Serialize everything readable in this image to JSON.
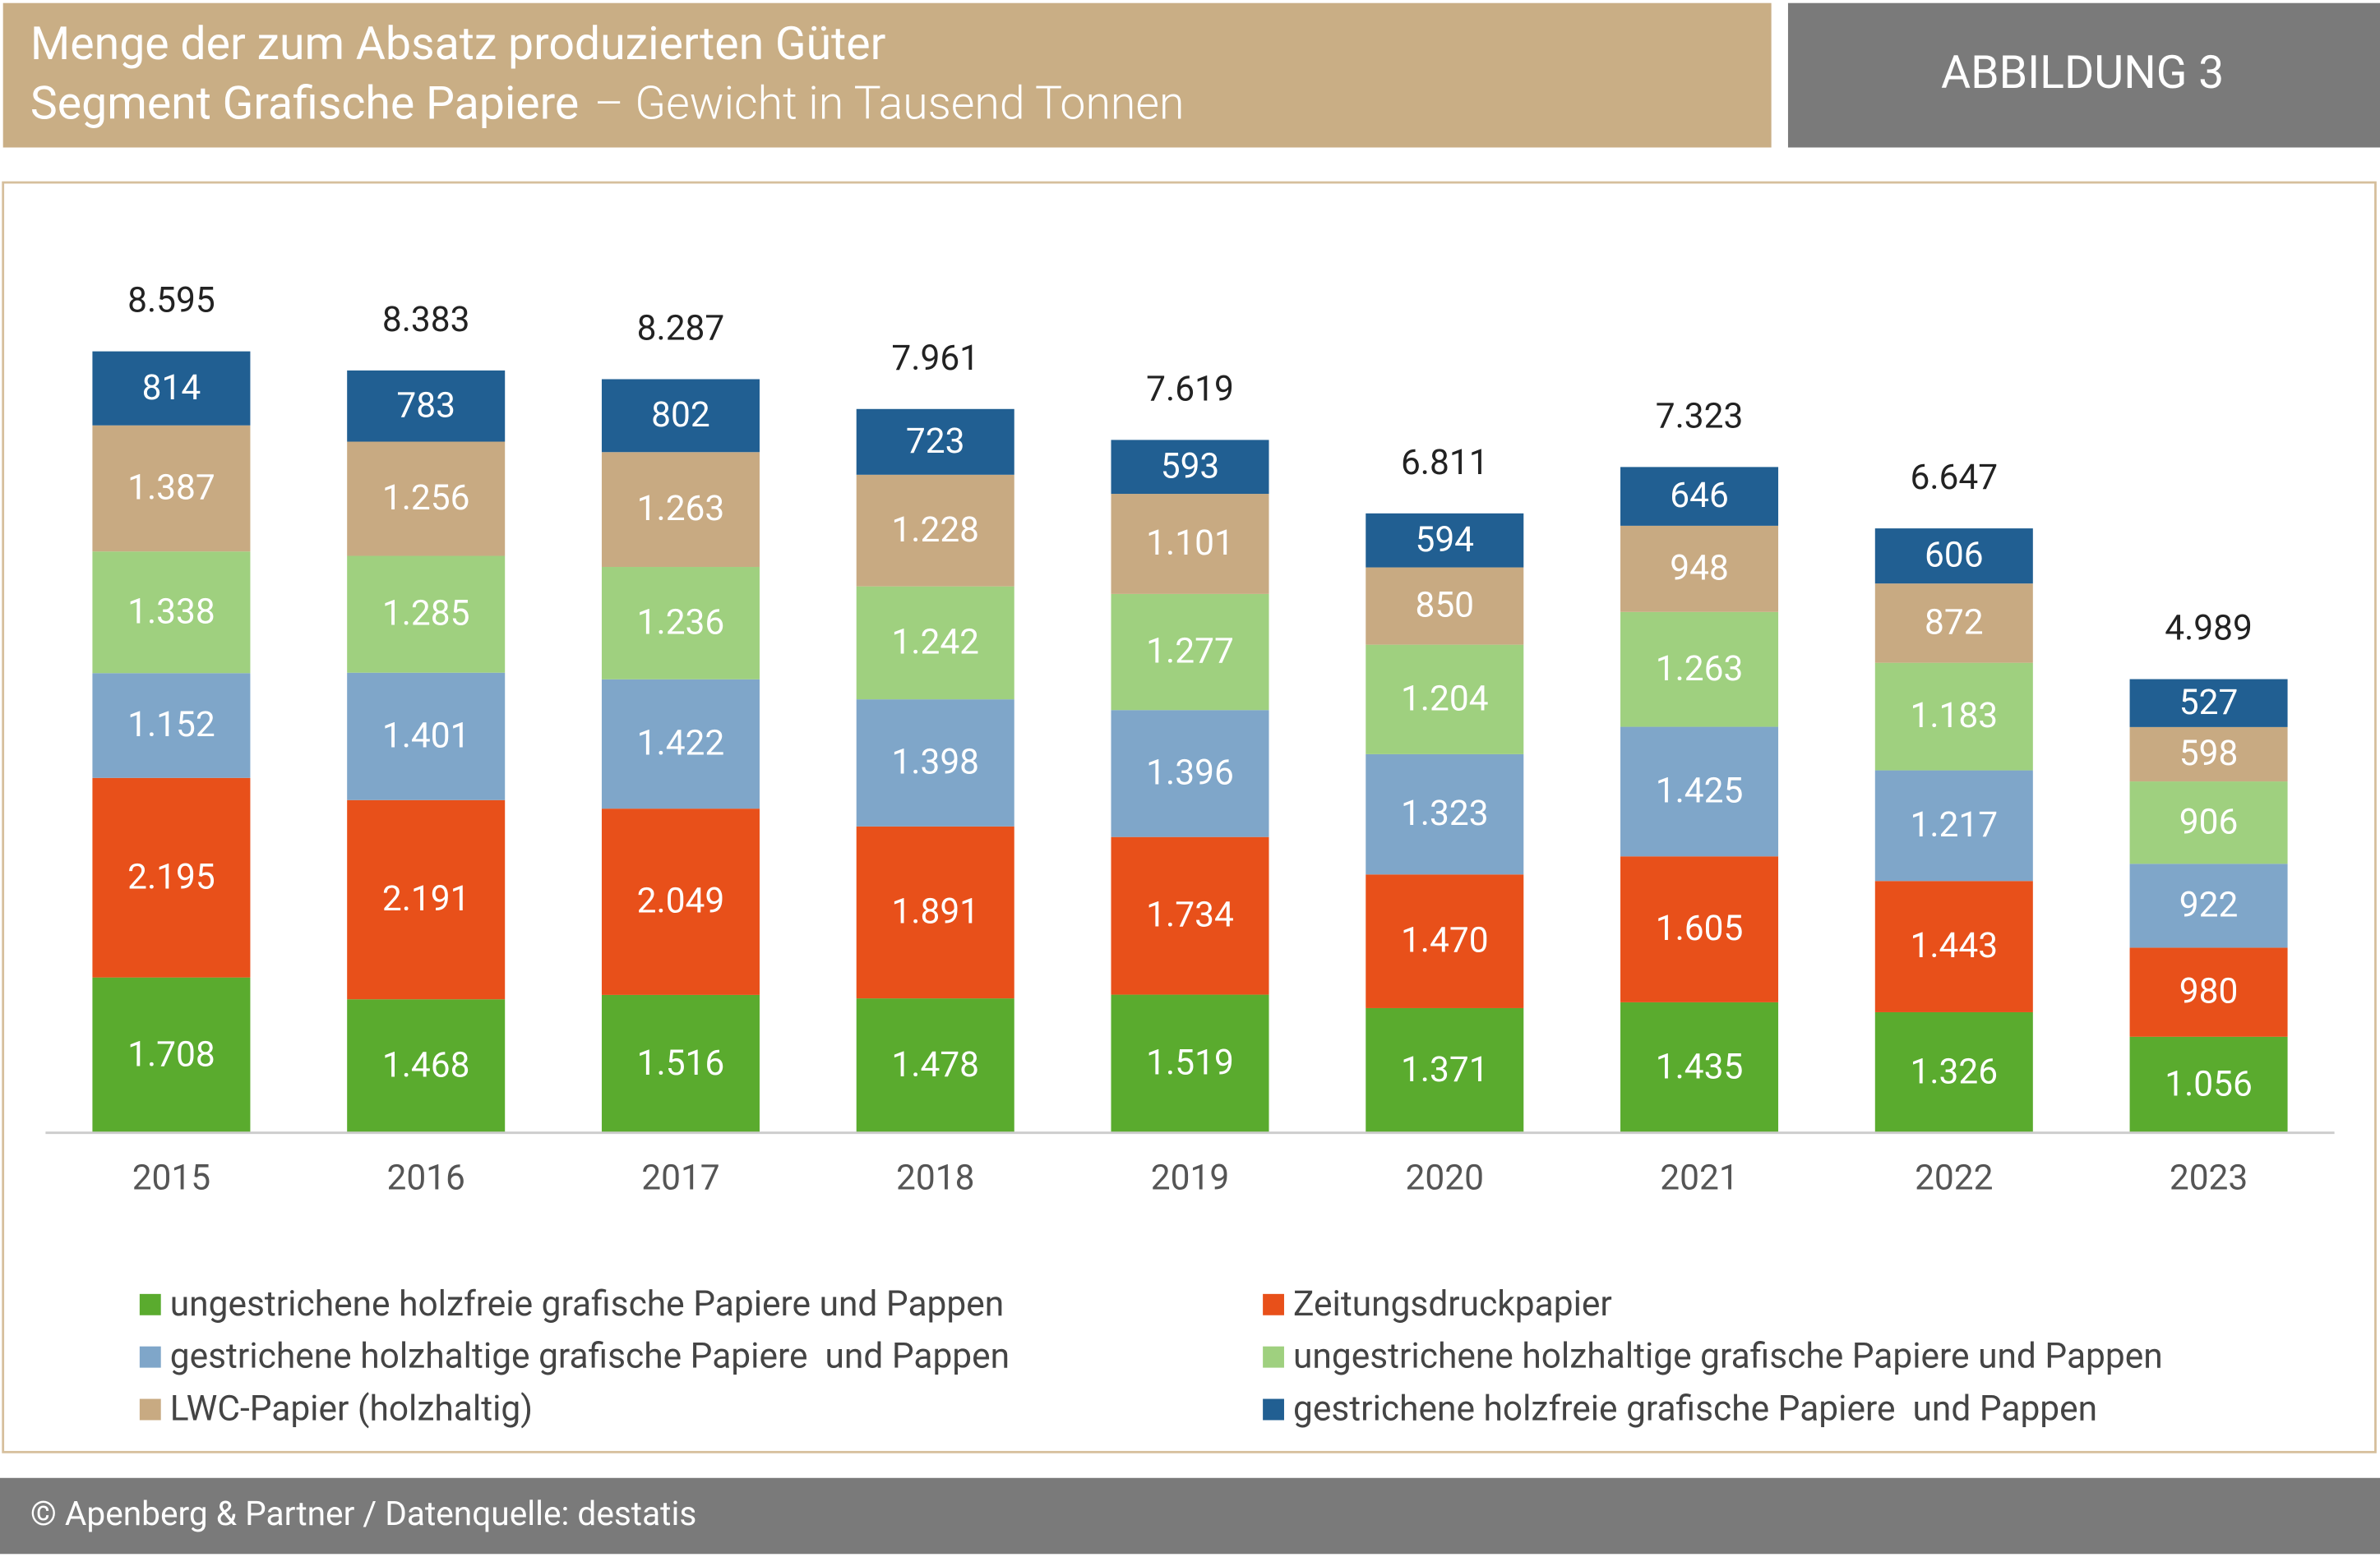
{
  "badge": "ABBILDUNG 3",
  "footer": "© Apenberg & Partner / Datenquelle: destatis",
  "chart_data": {
    "type": "stacked_bar",
    "title": "Menge der zum Absatz produzierten Güter",
    "subtitle": "Segment Grafische Papiere",
    "subtitle_detail": "– Gewicht in Tausend Tonnen",
    "categories": [
      "2015",
      "2016",
      "2017",
      "2018",
      "2019",
      "2020",
      "2021",
      "2022",
      "2023"
    ],
    "ylim": [
      0,
      10000
    ],
    "series": [
      {
        "name": "ungestrichene holzfreie grafische Papiere und Pappen",
        "color": "#5aab2e",
        "values": [
          1708,
          1468,
          1516,
          1478,
          1519,
          1371,
          1435,
          1326,
          1056
        ],
        "value_labels": [
          "1.708",
          "1.468",
          "1.516",
          "1.478",
          "1.519",
          "1.371",
          "1.435",
          "1.326",
          "1.056"
        ]
      },
      {
        "name": "Zeitungsdruckpapier",
        "color": "#e8501a",
        "values": [
          2195,
          2191,
          2049,
          1891,
          1734,
          1470,
          1605,
          1443,
          980
        ],
        "value_labels": [
          "2.195",
          "2.191",
          "2.049",
          "1.891",
          "1.734",
          "1.470",
          "1.605",
          "1.443",
          "980"
        ]
      },
      {
        "name": "gestrichene holzhaltige grafische Papiere  und Pappen",
        "color": "#7fa6c9",
        "values": [
          1152,
          1401,
          1422,
          1398,
          1396,
          1323,
          1425,
          1217,
          922
        ],
        "value_labels": [
          "1.152",
          "1.401",
          "1.422",
          "1.398",
          "1.396",
          "1.323",
          "1.425",
          "1.217",
          "922"
        ]
      },
      {
        "name": "ungestrichene holzhaltige grafische Papiere und Pappen",
        "color": "#9fd07f",
        "values": [
          1338,
          1285,
          1236,
          1242,
          1277,
          1204,
          1263,
          1183,
          906
        ],
        "value_labels": [
          "1.338",
          "1.285",
          "1.236",
          "1.242",
          "1.277",
          "1.204",
          "1.263",
          "1.183",
          "906"
        ]
      },
      {
        "name": "LWC-Papier (holzhaltig)",
        "color": "#c8aa82",
        "values": [
          1387,
          1256,
          1263,
          1228,
          1101,
          850,
          948,
          872,
          598
        ],
        "value_labels": [
          "1.387",
          "1.256",
          "1.263",
          "1.228",
          "1.101",
          "850",
          "948",
          "872",
          "598"
        ]
      },
      {
        "name": "gestrichene holzfreie grafische Papiere  und Pappen",
        "color": "#215f92",
        "values": [
          814,
          783,
          802,
          723,
          593,
          594,
          646,
          606,
          527
        ],
        "value_labels": [
          "814",
          "783",
          "802",
          "723",
          "593",
          "594",
          "646",
          "606",
          "527"
        ]
      }
    ],
    "totals": {
      "values": [
        8595,
        8383,
        8287,
        7961,
        7619,
        6811,
        7323,
        6647,
        4989
      ],
      "value_labels": [
        "8.595",
        "8.383",
        "8.287",
        "7.961",
        "7.619",
        "6.811",
        "7.323",
        "6.647",
        "4.989"
      ]
    }
  }
}
